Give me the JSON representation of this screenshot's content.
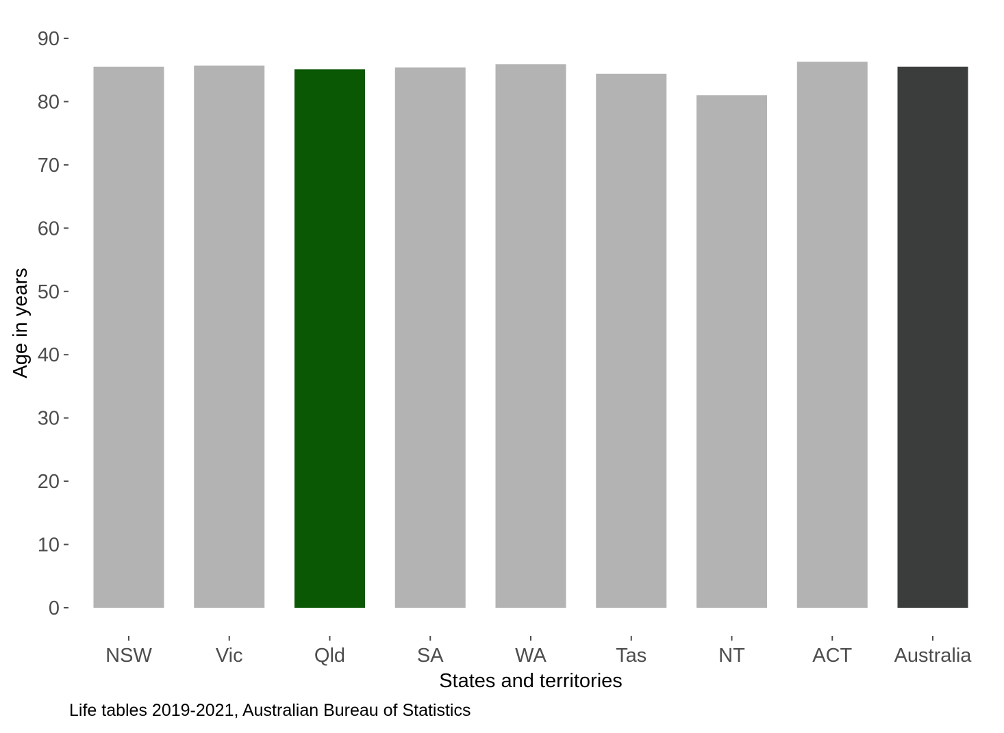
{
  "chart_data": {
    "type": "bar",
    "categories": [
      "NSW",
      "Vic",
      "Qld",
      "SA",
      "WA",
      "Tas",
      "NT",
      "ACT",
      "Australia"
    ],
    "values": [
      85.5,
      85.7,
      85.1,
      85.4,
      85.9,
      84.4,
      81.0,
      86.3,
      85.5
    ],
    "colors": [
      "#b3b3b3",
      "#b3b3b3",
      "#0a5704",
      "#b3b3b3",
      "#b3b3b3",
      "#b3b3b3",
      "#b3b3b3",
      "#b3b3b3",
      "#3b3c3c"
    ],
    "xlabel": "States and territories",
    "ylabel": "Age in years",
    "yticks": [
      0,
      10,
      20,
      30,
      40,
      50,
      60,
      70,
      80,
      90
    ],
    "ylim": [
      0,
      90
    ],
    "grid": false,
    "caption": "Life tables 2019-2021, Australian Bureau of Statistics"
  }
}
